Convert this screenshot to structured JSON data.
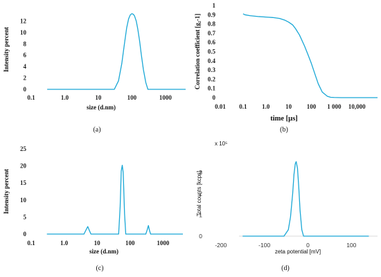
{
  "colors": {
    "curve": "#19a7d6"
  },
  "chart_data": [
    {
      "id": "a",
      "type": "line",
      "panel_label": "(a)",
      "xlabel": "size (d.nm)",
      "ylabel": "Intensity percent",
      "xscale": "log",
      "xlim": [
        0.1,
        4000
      ],
      "ylim": [
        0,
        14
      ],
      "xticks": [
        {
          "v": 0.1,
          "label": "0.1"
        },
        {
          "v": 1,
          "label": "1.0"
        },
        {
          "v": 10,
          "label": "10"
        },
        {
          "v": 100,
          "label": "100"
        },
        {
          "v": 1000,
          "label": "1000"
        }
      ],
      "yticks": [
        {
          "v": 0,
          "label": "0"
        },
        {
          "v": 2,
          "label": "2"
        },
        {
          "v": 4,
          "label": "4"
        },
        {
          "v": 6,
          "label": "6"
        },
        {
          "v": 8,
          "label": "8"
        },
        {
          "v": 10,
          "label": "10"
        },
        {
          "v": 12,
          "label": "12"
        }
      ],
      "series": [
        {
          "x": [
            0.3,
            30,
            40,
            50,
            60,
            70,
            80,
            90,
            100,
            110,
            120,
            135,
            150,
            170,
            190,
            220,
            260,
            300,
            4000
          ],
          "y": [
            0,
            0,
            1.5,
            4.5,
            8.0,
            10.8,
            12.4,
            13.1,
            13.3,
            13.2,
            12.9,
            12.0,
            10.6,
            8.5,
            6.2,
            3.5,
            1.2,
            0,
            0
          ]
        }
      ]
    },
    {
      "id": "b",
      "type": "line",
      "panel_label": "(b)",
      "xlabel": "time [µs]",
      "ylabel": "Correlation coefficient [g₂-1]",
      "xscale": "log",
      "xlim": [
        0.01,
        80000
      ],
      "ylim": [
        0,
        1
      ],
      "xticks": [
        {
          "v": 0.01,
          "label": "0.01"
        },
        {
          "v": 0.1,
          "label": "0.1"
        },
        {
          "v": 1,
          "label": "1.0"
        },
        {
          "v": 10,
          "label": "10"
        },
        {
          "v": 100,
          "label": "100"
        },
        {
          "v": 1000,
          "label": "1 000"
        },
        {
          "v": 10000,
          "label": "10,000"
        }
      ],
      "yticks": [
        {
          "v": 0,
          "label": "0"
        },
        {
          "v": 0.1,
          "label": "0.1"
        },
        {
          "v": 0.2,
          "label": "0.2"
        },
        {
          "v": 0.3,
          "label": "0.3"
        },
        {
          "v": 0.4,
          "label": "0.4"
        },
        {
          "v": 0.5,
          "label": "0.5"
        },
        {
          "v": 0.6,
          "label": "0.6"
        },
        {
          "v": 0.7,
          "label": "0.7"
        },
        {
          "v": 0.8,
          "label": "0.8"
        },
        {
          "v": 0.9,
          "label": "0.9"
        },
        {
          "v": 1,
          "label": "1"
        }
      ],
      "series": [
        {
          "x": [
            0.1,
            0.12,
            0.2,
            0.5,
            1,
            2,
            4,
            7,
            10,
            15,
            20,
            30,
            50,
            70,
            100,
            150,
            200,
            300,
            500,
            700,
            1000,
            2000,
            80000
          ],
          "y": [
            0.91,
            0.9,
            0.89,
            0.88,
            0.875,
            0.87,
            0.86,
            0.84,
            0.82,
            0.79,
            0.75,
            0.68,
            0.56,
            0.47,
            0.37,
            0.24,
            0.15,
            0.06,
            0.015,
            0.004,
            0.002,
            0.0,
            0.0
          ]
        }
      ]
    },
    {
      "id": "c",
      "type": "line",
      "panel_label": "(c)",
      "xlabel": "size (d.nm)",
      "ylabel": "Intensity percent",
      "xscale": "log",
      "xlim": [
        0.1,
        4000
      ],
      "ylim": [
        0,
        25
      ],
      "xticks": [
        {
          "v": 0.1,
          "label": "0.1"
        },
        {
          "v": 1,
          "label": "1.0"
        },
        {
          "v": 10,
          "label": "10"
        },
        {
          "v": 100,
          "label": "100"
        },
        {
          "v": 1000,
          "label": "1000"
        }
      ],
      "yticks": [
        {
          "v": 0,
          "label": "0"
        },
        {
          "v": 5,
          "label": "5"
        },
        {
          "v": 10,
          "label": "10"
        },
        {
          "v": 15,
          "label": "15"
        },
        {
          "v": 20,
          "label": "20"
        },
        {
          "v": 25,
          "label": "25"
        }
      ],
      "series": [
        {
          "x": [
            0.3,
            4.0,
            4.6,
            5.2,
            5.8,
            6.5,
            45,
            50,
            54,
            58,
            62,
            68,
            74,
            300,
            330,
            360,
            390,
            420,
            4000
          ],
          "y": [
            0,
            0,
            1.2,
            2.2,
            1.1,
            0,
            0,
            8.0,
            18.5,
            20.2,
            18.0,
            6.0,
            0,
            0,
            1.2,
            2.5,
            1.0,
            0,
            0
          ]
        }
      ]
    },
    {
      "id": "d",
      "type": "line",
      "panel_label": "(d)",
      "xlabel": "zeta potential [mV]",
      "ylabel": "Total counts [kcps]",
      "scale_note": "x 10⁵",
      "xscale": "linear",
      "xlim": [
        -230,
        160
      ],
      "ylim": [
        0,
        4
      ],
      "xticks": [
        {
          "v": -200,
          "label": "-200"
        },
        {
          "v": -100,
          "label": "-100"
        },
        {
          "v": 0,
          "label": "0"
        },
        {
          "v": 100,
          "label": "100"
        }
      ],
      "yticks": [
        {
          "v": 0,
          "label": "0"
        },
        {
          "v": 1,
          "label": "1"
        },
        {
          "v": 2,
          "label": "2"
        },
        {
          "v": 3,
          "label": "3"
        }
      ],
      "series": [
        {
          "x": [
            -150,
            -55,
            -45,
            -40,
            -35,
            -32,
            -29,
            -27,
            -24,
            -21,
            -18,
            -14,
            -10,
            140
          ],
          "y": [
            0,
            0,
            0.3,
            0.9,
            2.0,
            2.9,
            3.4,
            3.5,
            3.2,
            2.3,
            1.2,
            0.3,
            0,
            0
          ]
        }
      ]
    }
  ]
}
